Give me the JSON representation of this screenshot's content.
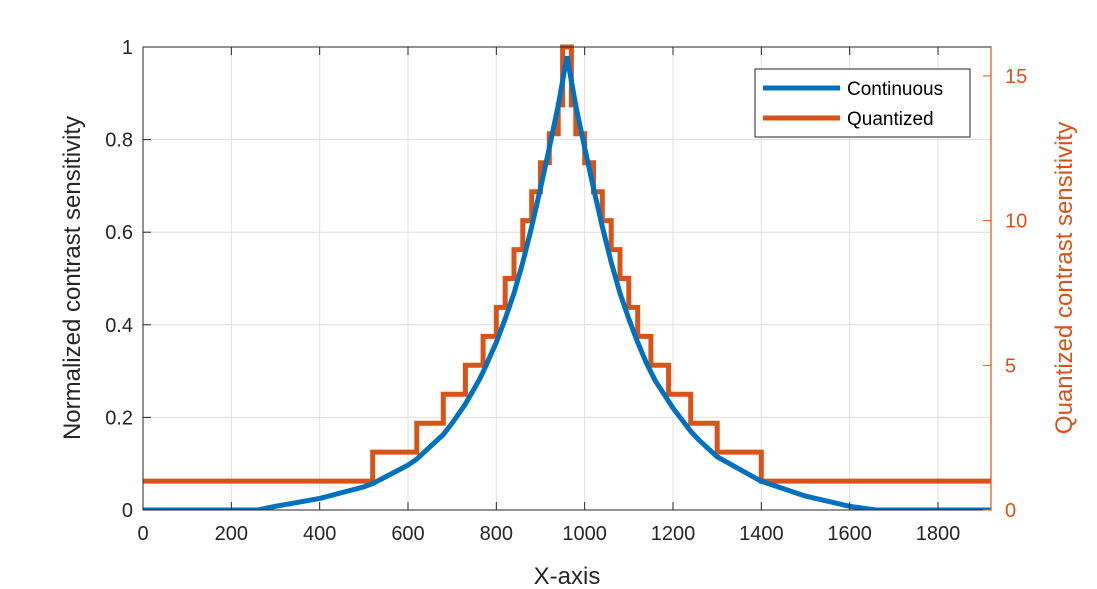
{
  "chart_data": {
    "type": "line",
    "xlabel": "X-axis",
    "ylabel_left": "Normalized contrast sensitivity",
    "ylabel_right": "Quantized contrast sensitivity",
    "xlim": [
      0,
      1920
    ],
    "ylim_left": [
      0,
      1
    ],
    "ylim_right": [
      0,
      16
    ],
    "xticks": [
      0,
      200,
      400,
      600,
      800,
      1000,
      1200,
      1400,
      1600,
      1800
    ],
    "yticks_left": [
      0,
      0.2,
      0.4,
      0.6,
      0.8,
      1
    ],
    "ytick_labels_left": [
      "0",
      "0.2",
      "0.4",
      "0.6",
      "0.8",
      "1"
    ],
    "yticks_right": [
      0,
      5,
      10,
      15
    ],
    "grid": true,
    "legend_position": "top-right",
    "colors": {
      "continuous": "#0072BD",
      "quantized": "#D95319"
    },
    "series": [
      {
        "name": "Continuous",
        "axis": "left",
        "x": [
          0,
          200,
          260,
          300,
          400,
          500,
          520,
          600,
          620,
          680,
          700,
          730,
          760,
          770,
          800,
          820,
          840,
          860,
          880,
          900,
          920,
          940,
          960,
          980,
          1000,
          1020,
          1040,
          1060,
          1080,
          1100,
          1120,
          1140,
          1150,
          1160,
          1190,
          1200,
          1240,
          1260,
          1300,
          1400,
          1500,
          1600,
          1660,
          1700,
          1920
        ],
        "values": [
          0,
          0,
          0,
          0.008,
          0.025,
          0.05,
          0.057,
          0.097,
          0.11,
          0.163,
          0.188,
          0.229,
          0.279,
          0.298,
          0.362,
          0.413,
          0.468,
          0.535,
          0.612,
          0.695,
          0.782,
          0.873,
          0.98,
          0.873,
          0.782,
          0.695,
          0.612,
          0.535,
          0.468,
          0.413,
          0.362,
          0.317,
          0.298,
          0.279,
          0.235,
          0.22,
          0.17,
          0.15,
          0.115,
          0.062,
          0.03,
          0.008,
          0,
          0,
          0
        ]
      },
      {
        "name": "Quantized",
        "axis": "right",
        "x": [
          0,
          520,
          520,
          620,
          620,
          680,
          680,
          730,
          730,
          770,
          770,
          800,
          800,
          820,
          820,
          840,
          840,
          860,
          860,
          880,
          880,
          900,
          900,
          920,
          920,
          940,
          940,
          950,
          950,
          970,
          970,
          980,
          980,
          1000,
          1000,
          1020,
          1020,
          1040,
          1040,
          1060,
          1060,
          1080,
          1080,
          1100,
          1100,
          1120,
          1120,
          1150,
          1150,
          1190,
          1190,
          1240,
          1240,
          1300,
          1300,
          1400,
          1400,
          1920
        ],
        "values": [
          1,
          1,
          2,
          2,
          3,
          3,
          4,
          4,
          5,
          5,
          6,
          6,
          7,
          7,
          8,
          8,
          9,
          9,
          10,
          10,
          11,
          11,
          12,
          12,
          13,
          13,
          14,
          14,
          16,
          16,
          14,
          14,
          13,
          13,
          12,
          12,
          11,
          11,
          10,
          10,
          9,
          9,
          8,
          8,
          7,
          7,
          6,
          6,
          5,
          5,
          4,
          4,
          3,
          3,
          2,
          2,
          1,
          1
        ]
      }
    ]
  }
}
